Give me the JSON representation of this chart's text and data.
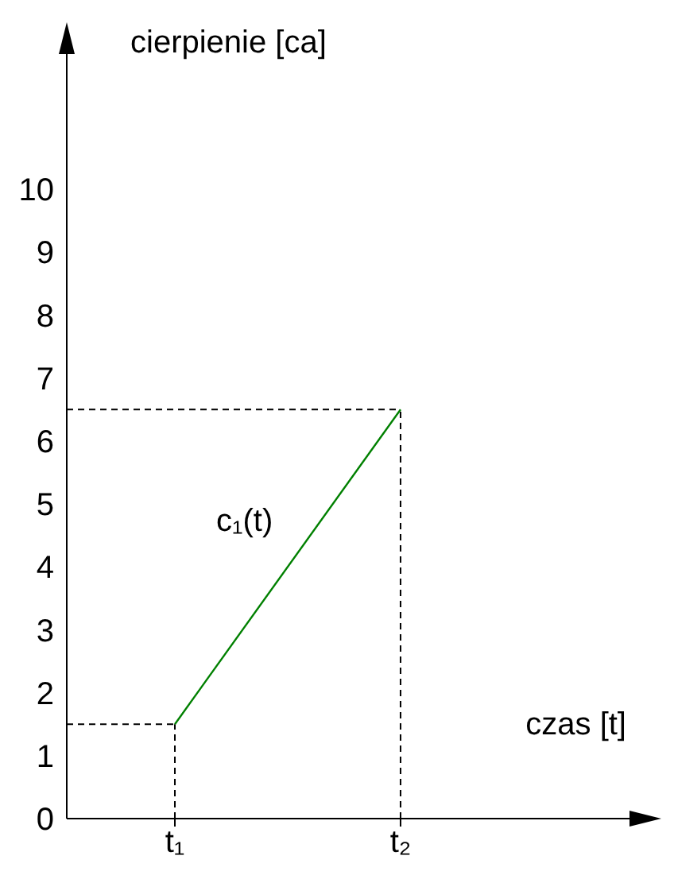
{
  "chart_data": {
    "type": "line",
    "xlabel": "czas [t]",
    "ylabel": "cierpienie [ca]",
    "categories": [
      "t₁",
      "t₂"
    ],
    "series": [
      {
        "color": "#008000",
        "values": [
          1.5,
          6.5
        ]
      }
    ],
    "ylim": [
      0,
      12.5
    ],
    "yticks": [
      0,
      1,
      2,
      3,
      4,
      5,
      6,
      7,
      8,
      9,
      10
    ],
    "ref_lines": [
      {
        "axis": "y",
        "value": 1.5,
        "line_style": "dashed",
        "color": "#000000"
      },
      {
        "axis": "y",
        "value": 6.5,
        "line_style": "dashed",
        "color": "#000000"
      },
      {
        "axis": "x",
        "value": "t₁",
        "line_style": "dashed",
        "color": "#000000"
      },
      {
        "axis": "x",
        "value": "t₂",
        "line_style": "dashed",
        "color": "#000000"
      }
    ],
    "annotations": [
      "c₁(t)"
    ],
    "marker": "none",
    "line_style": "solid"
  }
}
